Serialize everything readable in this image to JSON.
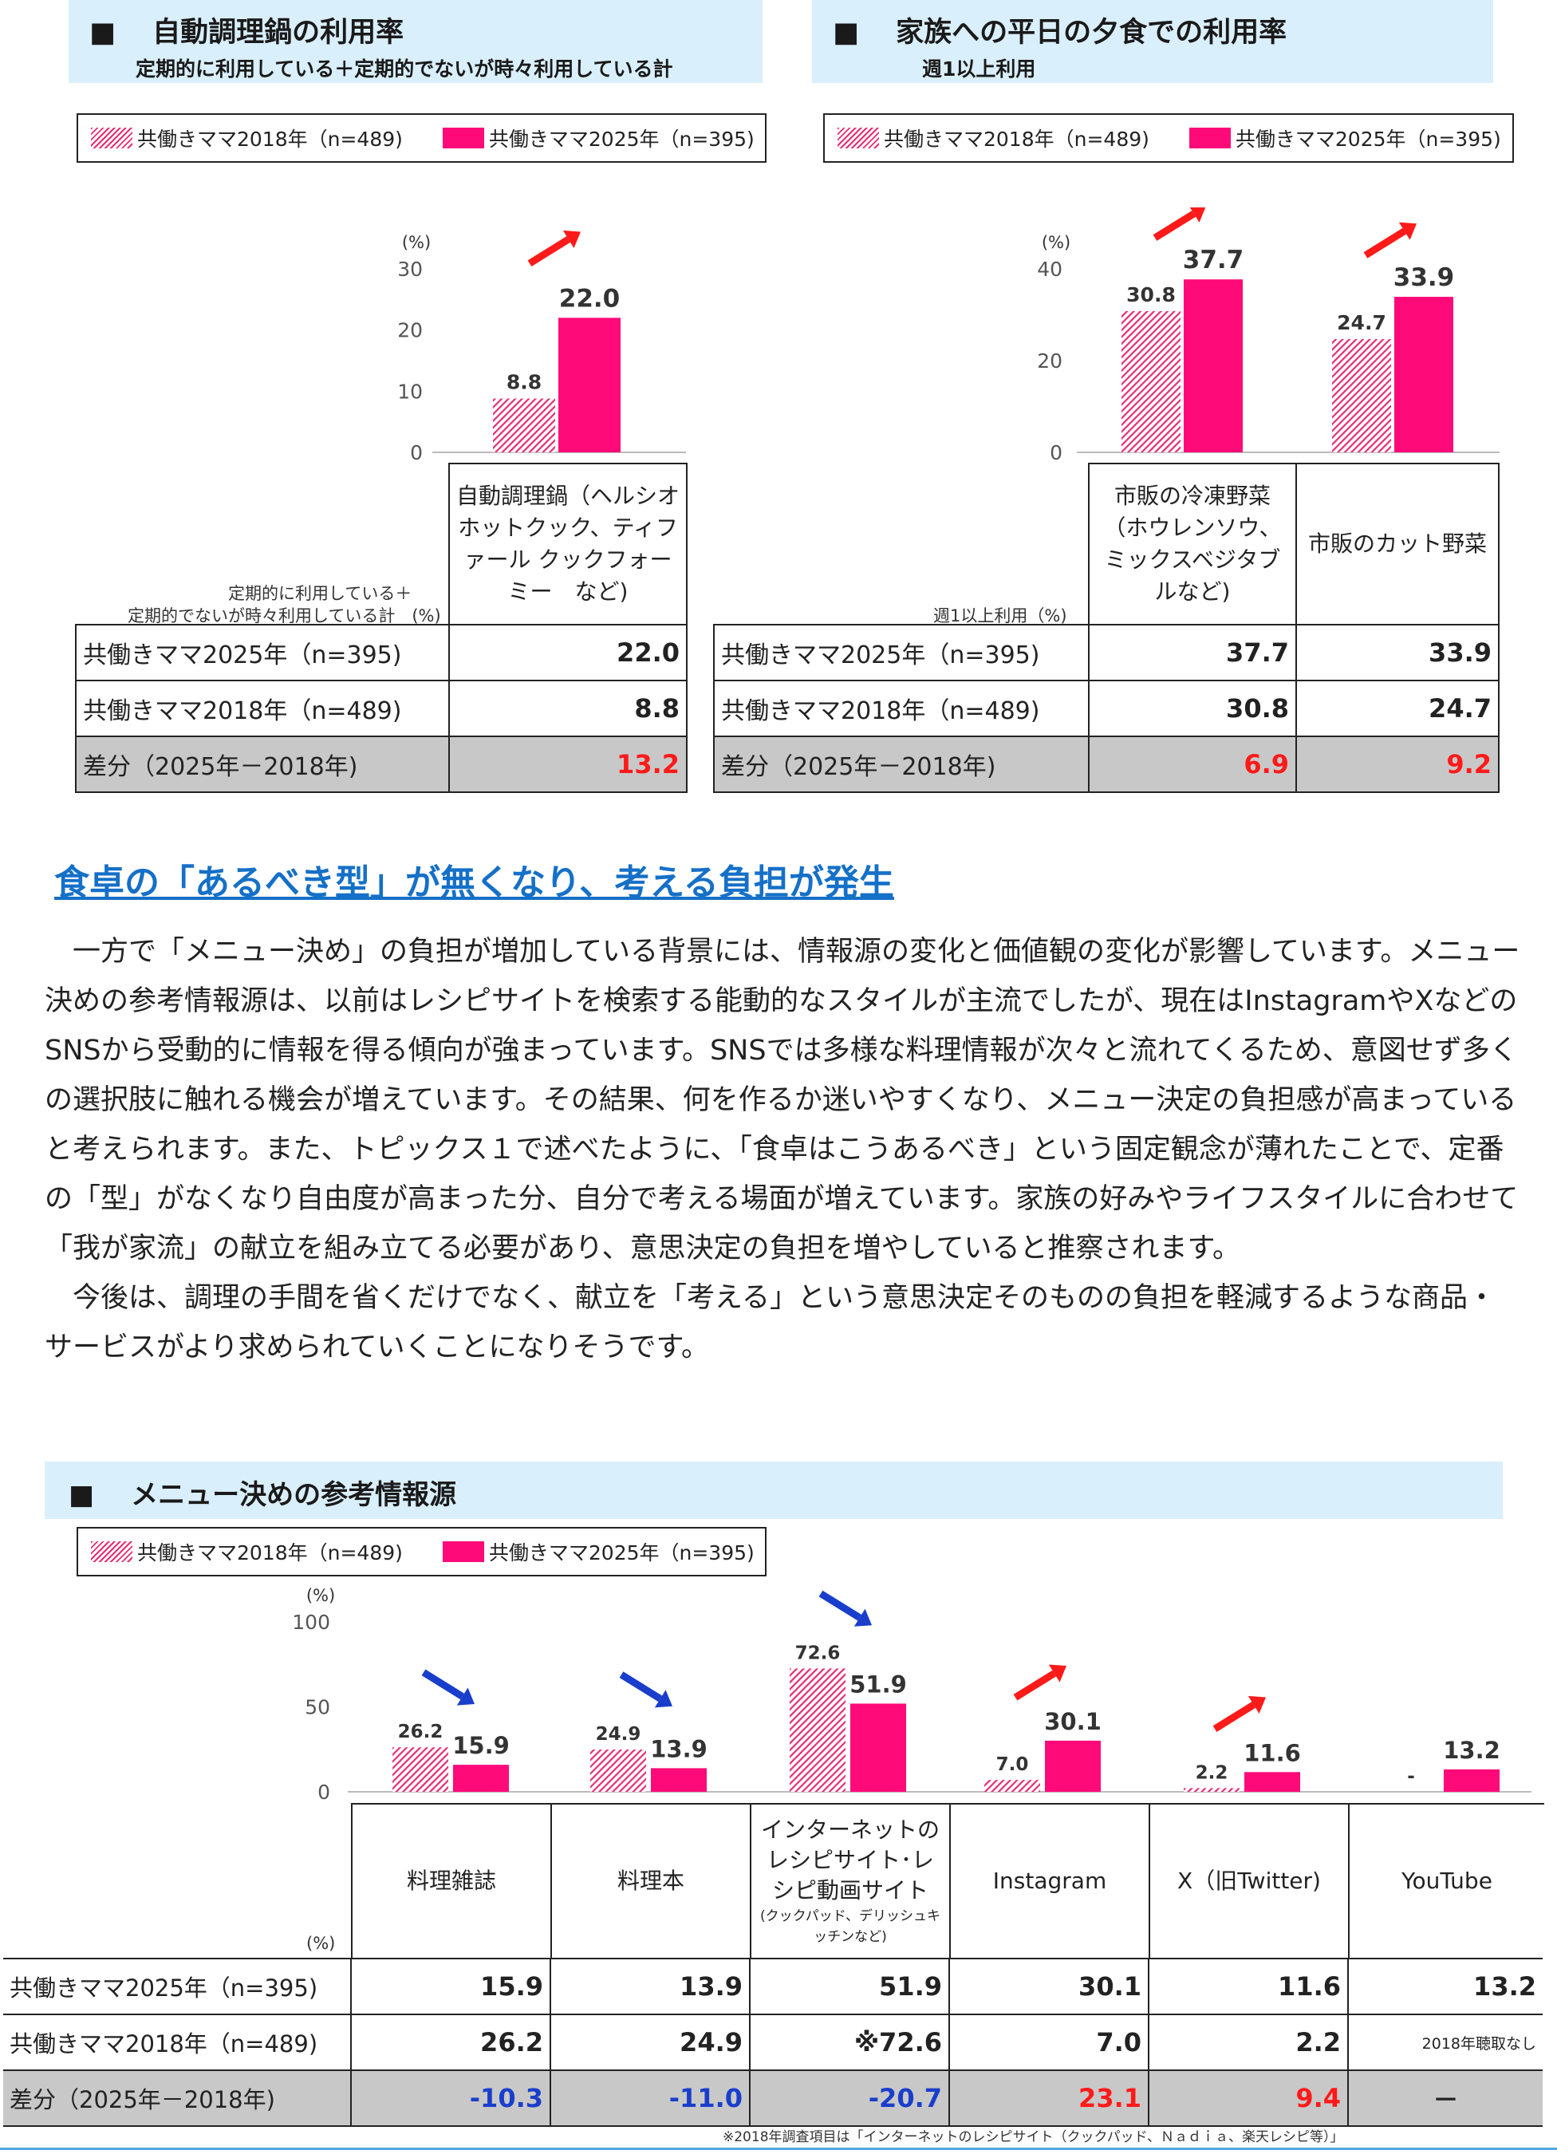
{
  "legend": {
    "s2018": "共働きママ2018年（n=489)",
    "s2025": "共働きママ2025年（n=395)"
  },
  "colors": {
    "s2018": "#e52e74",
    "s2025": "#ff0a78",
    "accent_heading": "#1570c8",
    "up_arrow": "#ff1a1a",
    "down_arrow": "#1a3ecc",
    "header_bg": "#d9effb",
    "diff_bg": "#c8c8c8"
  },
  "panel1": {
    "title_square": "■",
    "title": "自動調理鍋の利用率",
    "subtitle": "定期的に利用している＋定期的でないが時々利用している計",
    "unit": "(%)",
    "table_note_1": "定期的に利用している＋",
    "table_note_2": "定期的でないが時々利用している計　(%)",
    "category": "自動調理鍋（ヘルシオ　ホットクック、ティファール クックフォーミー　など)",
    "row_labels": [
      "共働きママ2025年（n=395)",
      "共働きママ2018年（n=489)",
      "差分（2025年－2018年)"
    ],
    "rows": [
      [
        "22.0"
      ],
      [
        "8.8"
      ],
      [
        "13.2"
      ]
    ]
  },
  "panel2": {
    "title_square": "■",
    "title": "家族への平日の夕食での利用率",
    "subtitle": "週1以上利用",
    "unit": "(%)",
    "table_note": "週1以上利用（%)",
    "categories": [
      "市販の冷凍野菜（ホウレンソウ、ミックスベジタブルなど)",
      "市販のカット野菜"
    ],
    "row_labels": [
      "共働きママ2025年（n=395)",
      "共働きママ2018年（n=489)",
      "差分（2025年－2018年)"
    ],
    "rows": [
      [
        "37.7",
        "33.9"
      ],
      [
        "30.8",
        "24.7"
      ],
      [
        "6.9",
        "9.2"
      ]
    ]
  },
  "article": {
    "heading": "食卓の「あるべき型」が無くなり、考える負担が発生",
    "para1": "一方で「メニュー決め」の負担が増加している背景には、情報源の変化と価値観の変化が影響しています。メニュー決めの参考情報源は、以前はレシピサイトを検索する能動的なスタイルが主流でしたが、現在はInstagramやXなどのSNSから受動的に情報を得る傾向が強まっています。SNSでは多様な料理情報が次々と流れてくるため、意図せず多くの選択肢に触れる機会が増えています。その結果、何を作るか迷いやすくなり、メニュー決定の負担感が高まっていると考えられます。また、トピックス１で述べたように、「食卓はこうあるべき」という固定観念が薄れたことで、定番の「型」がなくなり自由度が高まった分、自分で考える場面が増えています。家族の好みやライフスタイルに合わせて「我が家流」の献立を組み立てる必要があり、意思決定の負担を増やしていると推察されます。",
    "para2": "今後は、調理の手間を省くだけでなく、献立を「考える」という意思決定そのものの負担を軽減するような商品・サービスがより求められていくことになりそうです。"
  },
  "panel3": {
    "title_square": "■",
    "title": "メニュー決めの参考情報源",
    "unit": "(%)",
    "table_unit": "(%)",
    "categories": [
      "料理雑誌",
      "料理本",
      "インターネットのレシピサイト･レシピ動画サイト",
      "Instagram",
      "X（旧Twitter)",
      "YouTube"
    ],
    "category3_note": "(クックパッド、デリッシュキッチンなど)",
    "row_labels": [
      "共働きママ2025年（n=395)",
      "共働きママ2018年（n=489)",
      "差分（2025年－2018年)"
    ],
    "rows": [
      [
        "15.9",
        "13.9",
        "51.9",
        "30.1",
        "11.6",
        "13.2"
      ],
      [
        "26.2",
        "24.9",
        "※72.6",
        "7.0",
        "2.2",
        "2018年聴取なし"
      ],
      [
        "-10.3",
        "-11.0",
        "-20.7",
        "23.1",
        "9.4",
        "－"
      ]
    ],
    "footnote": "※2018年調査項目は「インターネットのレシピサイト（クックパッド、Ｎａｄｉａ、楽天レシピ等）」"
  },
  "chart_data": [
    {
      "type": "bar",
      "title": "自動調理鍋の利用率",
      "subtitle": "定期的に利用している＋定期的でないが時々利用している計",
      "ylabel": "(%)",
      "ylim": [
        0,
        30
      ],
      "yticks": [
        "0",
        "10",
        "20",
        "30"
      ],
      "categories": [
        "自動調理鍋"
      ],
      "series": [
        {
          "name": "共働きママ2018年（n=489)",
          "values": [
            8.8
          ],
          "labels": [
            "8.8"
          ]
        },
        {
          "name": "共働きママ2025年（n=395)",
          "values": [
            22.0
          ],
          "labels": [
            "22.0"
          ]
        }
      ],
      "arrows": [
        "up"
      ]
    },
    {
      "type": "bar",
      "title": "家族への平日の夕食での利用率",
      "subtitle": "週1以上利用",
      "ylabel": "(%)",
      "ylim": [
        0,
        40
      ],
      "yticks": [
        "0",
        "20",
        "40"
      ],
      "categories": [
        "市販の冷凍野菜",
        "市販のカット野菜"
      ],
      "series": [
        {
          "name": "共働きママ2018年（n=489)",
          "values": [
            30.8,
            24.7
          ],
          "labels": [
            "30.8",
            "24.7"
          ]
        },
        {
          "name": "共働きママ2025年（n=395)",
          "values": [
            37.7,
            33.9
          ],
          "labels": [
            "37.7",
            "33.9"
          ]
        }
      ],
      "arrows": [
        "up",
        "up"
      ]
    },
    {
      "type": "bar",
      "title": "メニュー決めの参考情報源",
      "ylabel": "(%)",
      "ylim": [
        0,
        100
      ],
      "yticks": [
        "0",
        "50",
        "100"
      ],
      "categories": [
        "料理雑誌",
        "料理本",
        "インターネットのレシピサイト･レシピ動画サイト",
        "Instagram",
        "X（旧Twitter)",
        "YouTube"
      ],
      "series": [
        {
          "name": "共働きママ2018年（n=489)",
          "values": [
            26.2,
            24.9,
            72.6,
            7.0,
            2.2,
            null
          ],
          "labels": [
            "26.2",
            "24.9",
            "72.6",
            "7.0",
            "2.2",
            "-"
          ]
        },
        {
          "name": "共働きママ2025年（n=395)",
          "values": [
            15.9,
            13.9,
            51.9,
            30.1,
            11.6,
            13.2
          ],
          "labels": [
            "15.9",
            "13.9",
            "51.9",
            "30.1",
            "11.6",
            "13.2"
          ]
        }
      ],
      "arrows": [
        "down",
        "down",
        "down",
        "up",
        "up",
        "none"
      ]
    }
  ]
}
